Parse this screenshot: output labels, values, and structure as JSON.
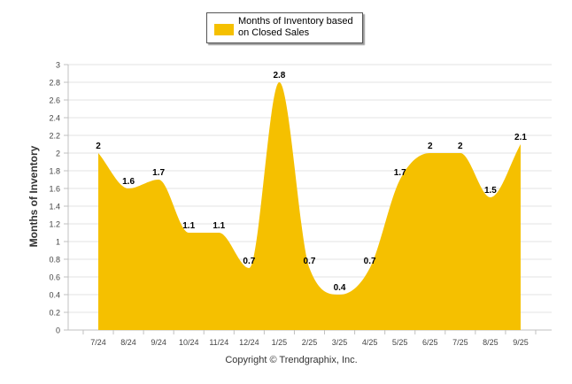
{
  "chart_data": {
    "type": "area",
    "title": "",
    "xlabel": "",
    "ylabel": "Months of Inventory",
    "ylim": [
      0,
      3
    ],
    "yticks": [
      "0",
      "0.2",
      "0.4",
      "0.6",
      "0.8",
      "1",
      "1.2",
      "1.4",
      "1.6",
      "1.8",
      "2",
      "2.2",
      "2.4",
      "2.6",
      "2.8",
      "3"
    ],
    "categories": [
      "7/24",
      "8/24",
      "9/24",
      "10/24",
      "11/24",
      "12/24",
      "1/25",
      "2/25",
      "3/25",
      "4/25",
      "5/25",
      "6/25",
      "7/25",
      "8/25",
      "9/25"
    ],
    "series": [
      {
        "name": "Months of Inventory based on Closed Sales",
        "values": [
          2,
          1.6,
          1.7,
          1.1,
          1.1,
          0.7,
          2.8,
          0.7,
          0.4,
          0.7,
          1.7,
          2,
          2,
          1.5,
          2.1
        ],
        "color": "#f5c000"
      }
    ],
    "grid": true,
    "legend_position": "top-center"
  },
  "legend": {
    "line1": "Months of Inventory based",
    "line2": "on Closed Sales"
  },
  "footer": {
    "copyright": "Copyright © Trendgraphix, Inc."
  },
  "colors": {
    "area": "#f5c000",
    "grid": "#e3e3e3",
    "axis": "#c0c0c0"
  }
}
